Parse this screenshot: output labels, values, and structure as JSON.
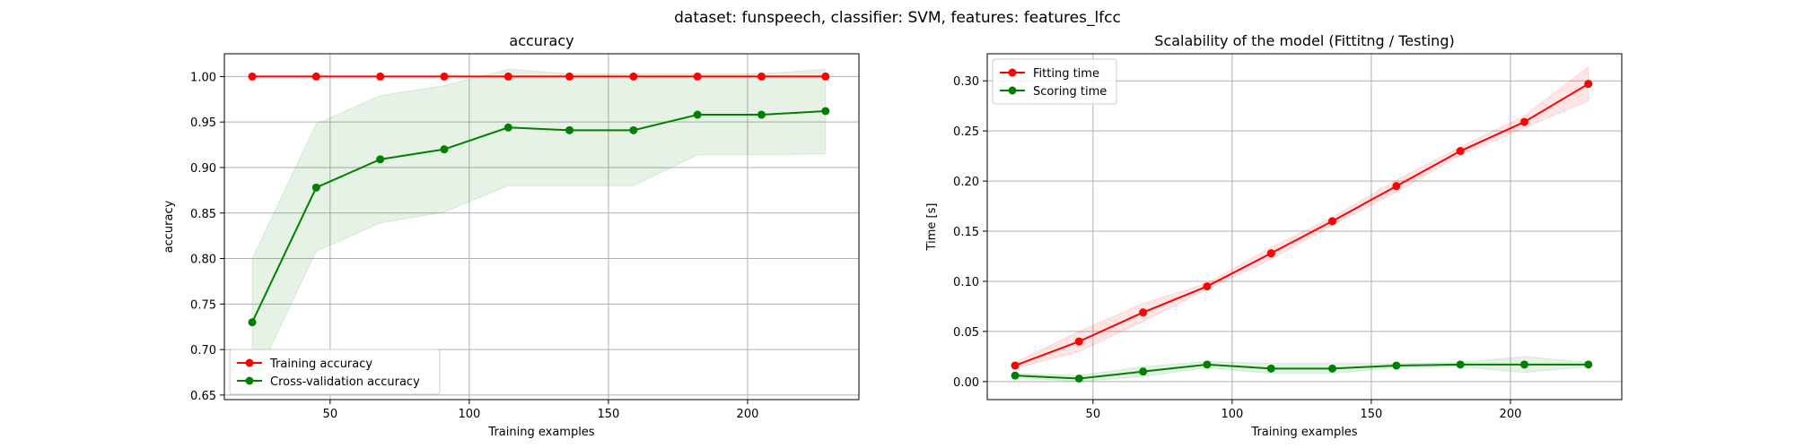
{
  "figure": {
    "suptitle": "dataset: funspeech, classifier: SVM, features: features_lfcc"
  },
  "colors": {
    "train": "#ff0000",
    "cv": "#008000",
    "grid": "#b0b0b0",
    "axis": "#000000"
  },
  "chart_data": [
    {
      "type": "line",
      "title": "accuracy",
      "xlabel": "Training examples",
      "ylabel": "accuracy",
      "xlim": [
        12,
        240
      ],
      "ylim": [
        0.645,
        1.025
      ],
      "xticks": [
        50,
        100,
        150,
        200
      ],
      "xtick_labels": [
        "50",
        "100",
        "150",
        "200"
      ],
      "yticks": [
        0.65,
        0.7,
        0.75,
        0.8,
        0.85,
        0.9,
        0.95,
        1.0
      ],
      "ytick_labels": [
        "0.65",
        "0.70",
        "0.75",
        "0.80",
        "0.85",
        "0.90",
        "0.95",
        "1.00"
      ],
      "grid": true,
      "legend_position": "lower-left",
      "x": [
        22,
        45,
        68,
        91,
        114,
        136,
        159,
        182,
        205,
        228
      ],
      "series": [
        {
          "name": "Training accuracy",
          "color": "#ff0000",
          "values": [
            1.0,
            1.0,
            1.0,
            1.0,
            1.0,
            1.0,
            1.0,
            1.0,
            1.0,
            1.0
          ],
          "band_lower": [
            1.0,
            1.0,
            1.0,
            1.0,
            1.0,
            1.0,
            1.0,
            1.0,
            1.0,
            1.0
          ],
          "band_upper": [
            1.0,
            1.0,
            1.0,
            1.0,
            1.0,
            1.0,
            1.0,
            1.0,
            1.0,
            1.0
          ]
        },
        {
          "name": "Cross-validation accuracy",
          "color": "#008000",
          "values": [
            0.73,
            0.878,
            0.909,
            0.92,
            0.944,
            0.941,
            0.941,
            0.958,
            0.958,
            0.962
          ],
          "band_lower": [
            0.66,
            0.808,
            0.839,
            0.851,
            0.88,
            0.88,
            0.88,
            0.914,
            0.914,
            0.915
          ],
          "band_upper": [
            0.8,
            0.948,
            0.979,
            0.99,
            1.008,
            1.003,
            1.003,
            1.003,
            1.003,
            1.008
          ]
        }
      ]
    },
    {
      "type": "line",
      "title": "Scalability of the model (Fittitng / Testing)",
      "xlabel": "Training examples",
      "ylabel": "Time [s]",
      "xlim": [
        12,
        240
      ],
      "ylim": [
        -0.018,
        0.327
      ],
      "xticks": [
        50,
        100,
        150,
        200
      ],
      "xtick_labels": [
        "50",
        "100",
        "150",
        "200"
      ],
      "yticks": [
        0.0,
        0.05,
        0.1,
        0.15,
        0.2,
        0.25,
        0.3
      ],
      "ytick_labels": [
        "0.00",
        "0.05",
        "0.10",
        "0.15",
        "0.20",
        "0.25",
        "0.30"
      ],
      "grid": true,
      "legend_position": "upper-left",
      "x": [
        22,
        45,
        68,
        91,
        114,
        136,
        159,
        182,
        205,
        228
      ],
      "series": [
        {
          "name": "Fitting time",
          "color": "#ff0000",
          "values": [
            0.016,
            0.04,
            0.069,
            0.095,
            0.128,
            0.16,
            0.195,
            0.23,
            0.259,
            0.297
          ],
          "band_lower": [
            0.013,
            0.03,
            0.06,
            0.092,
            0.122,
            0.156,
            0.189,
            0.226,
            0.253,
            0.28
          ],
          "band_upper": [
            0.019,
            0.05,
            0.078,
            0.098,
            0.134,
            0.164,
            0.201,
            0.234,
            0.265,
            0.314
          ]
        },
        {
          "name": "Scoring time",
          "color": "#008000",
          "values": [
            0.006,
            0.003,
            0.01,
            0.017,
            0.013,
            0.013,
            0.016,
            0.017,
            0.017,
            0.017
          ],
          "band_lower": [
            0.004,
            0.0,
            0.005,
            0.014,
            0.008,
            0.008,
            0.014,
            0.015,
            0.009,
            0.015
          ],
          "band_upper": [
            0.008,
            0.006,
            0.015,
            0.02,
            0.018,
            0.018,
            0.018,
            0.019,
            0.025,
            0.019
          ]
        }
      ]
    }
  ]
}
